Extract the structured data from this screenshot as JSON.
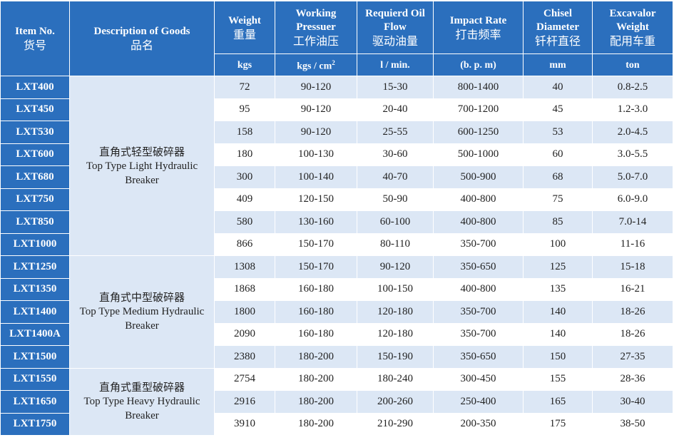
{
  "header": {
    "columns": [
      {
        "en": "Item No.",
        "zh": "货号"
      },
      {
        "en": "Description of Goods",
        "zh": "品名"
      },
      {
        "en": "Weight",
        "zh": "重量"
      },
      {
        "en": "Working Pressuer",
        "zh": "工作油压"
      },
      {
        "en": "Requierd Oil Flow",
        "zh": "驱动油量"
      },
      {
        "en": "Impact Rate",
        "zh": "打击频率"
      },
      {
        "en": "Chisel Diameter",
        "zh": "钎杆直径"
      },
      {
        "en": "Excavalor Weight",
        "zh": "配用车重"
      }
    ],
    "units": [
      {
        "text": "kgs"
      },
      {
        "text": "kgs / cm",
        "sup": "2"
      },
      {
        "text": "l / min."
      },
      {
        "text": "(b. p. m)"
      },
      {
        "text": "mm"
      },
      {
        "text": "ton"
      }
    ]
  },
  "groups": [
    {
      "zh": "直角式轻型破碎器",
      "en": "Top Type Light Hydraulic Breaker",
      "rows": [
        [
          "LXT400",
          "72",
          "90-120",
          "15-30",
          "800-1400",
          "40",
          "0.8-2.5"
        ],
        [
          "LXT450",
          "95",
          "90-120",
          "20-40",
          "700-1200",
          "45",
          "1.2-3.0"
        ],
        [
          "LXT530",
          "158",
          "90-120",
          "25-55",
          "600-1250",
          "53",
          "2.0-4.5"
        ],
        [
          "LXT600",
          "180",
          "100-130",
          "30-60",
          "500-1000",
          "60",
          "3.0-5.5"
        ],
        [
          "LXT680",
          "300",
          "100-140",
          "40-70",
          "500-900",
          "68",
          "5.0-7.0"
        ],
        [
          "LXT750",
          "409",
          "120-150",
          "50-90",
          "400-800",
          "75",
          "6.0-9.0"
        ],
        [
          "LXT850",
          "580",
          "130-160",
          "60-100",
          "400-800",
          "85",
          "7.0-14"
        ],
        [
          "LXT1000",
          "866",
          "150-170",
          "80-110",
          "350-700",
          "100",
          "11-16"
        ]
      ]
    },
    {
      "zh": "直角式中型破碎器",
      "en": "Top Type Medium Hydraulic Breaker",
      "rows": [
        [
          "LXT1250",
          "1308",
          "150-170",
          "90-120",
          "350-650",
          "125",
          "15-18"
        ],
        [
          "LXT1350",
          "1868",
          "160-180",
          "100-150",
          "400-800",
          "135",
          "16-21"
        ],
        [
          "LXT1400",
          "1800",
          "160-180",
          "120-180",
          "350-700",
          "140",
          "18-26"
        ],
        [
          "LXT1400A",
          "2090",
          "160-180",
          "120-180",
          "350-700",
          "140",
          "18-26"
        ],
        [
          "LXT1500",
          "2380",
          "180-200",
          "150-190",
          "350-650",
          "150",
          "27-35"
        ]
      ]
    },
    {
      "zh": "直角式重型破碎器",
      "en": "Top Type Heavy Hydraulic Breaker",
      "rows": [
        [
          "LXT1550",
          "2754",
          "180-200",
          "180-240",
          "300-450",
          "155",
          "28-36"
        ],
        [
          "LXT1650",
          "2916",
          "180-200",
          "200-260",
          "250-400",
          "165",
          "30-40"
        ],
        [
          "LXT1750",
          "3910",
          "180-200",
          "210-290",
          "200-350",
          "175",
          "38-50"
        ]
      ]
    }
  ]
}
